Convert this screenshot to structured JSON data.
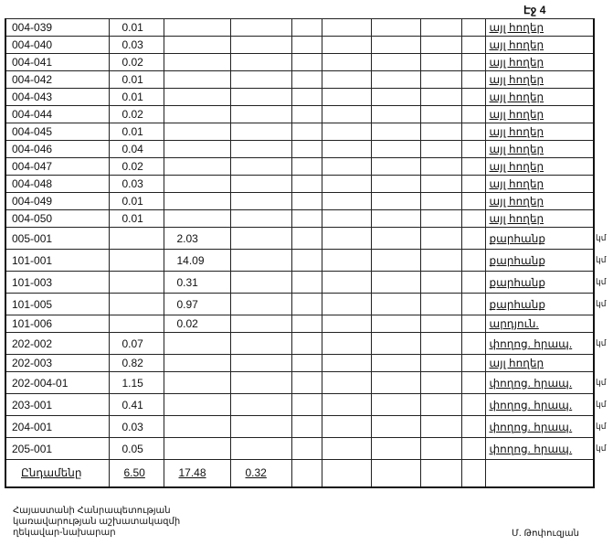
{
  "page_label": "Էջ 4",
  "rows": [
    {
      "code": "004-039",
      "a": "0.01",
      "b": "",
      "c": "",
      "land": "այլ հողեր",
      "suffix": ""
    },
    {
      "code": "004-040",
      "a": "0.03",
      "b": "",
      "c": "",
      "land": "այլ հողեր",
      "suffix": ""
    },
    {
      "code": "004-041",
      "a": "0.02",
      "b": "",
      "c": "",
      "land": "այլ հողեր",
      "suffix": ""
    },
    {
      "code": "004-042",
      "a": "0.01",
      "b": "",
      "c": "",
      "land": "այլ հողեր",
      "suffix": ""
    },
    {
      "code": "004-043",
      "a": "0.01",
      "b": "",
      "c": "",
      "land": "այլ հողեր",
      "suffix": ""
    },
    {
      "code": "004-044",
      "a": "0.02",
      "b": "",
      "c": "",
      "land": "այլ հողեր",
      "suffix": ""
    },
    {
      "code": "004-045",
      "a": "0.01",
      "b": "",
      "c": "",
      "land": "այլ հողեր",
      "suffix": ""
    },
    {
      "code": "004-046",
      "a": "0.04",
      "b": "",
      "c": "",
      "land": "այլ հողեր",
      "suffix": ""
    },
    {
      "code": "004-047",
      "a": "0.02",
      "b": "",
      "c": "",
      "land": "այլ հողեր",
      "suffix": ""
    },
    {
      "code": "004-048",
      "a": "0.03",
      "b": "",
      "c": "",
      "land": "այլ հողեր",
      "suffix": ""
    },
    {
      "code": "004-049",
      "a": "0.01",
      "b": "",
      "c": "",
      "land": "այլ հողեր",
      "suffix": ""
    },
    {
      "code": "004-050",
      "a": "0.01",
      "b": "",
      "c": "",
      "land": "այլ հողեր",
      "suffix": ""
    },
    {
      "code": "005-001",
      "a": "",
      "b": "2.03",
      "c": "",
      "land": "քարհանք",
      "suffix": "կմ"
    },
    {
      "code": "101-001",
      "a": "",
      "b": "14.09",
      "c": "",
      "land": "քարհանք",
      "suffix": "կմ"
    },
    {
      "code": "101-003",
      "a": "",
      "b": "0.31",
      "c": "",
      "land": "քարհանք",
      "suffix": "կմ"
    },
    {
      "code": "101-005",
      "a": "",
      "b": "0.97",
      "c": "",
      "land": "քարհանք",
      "suffix": "կմ"
    },
    {
      "code": "101-006",
      "a": "",
      "b": "0.02",
      "c": "",
      "land": "արդյուն.",
      "suffix": ""
    },
    {
      "code": "202-002",
      "a": "0.07",
      "b": "",
      "c": "",
      "land": "փողոց. հրապ.",
      "suffix": "կմ"
    },
    {
      "code": "202-003",
      "a": "0.82",
      "b": "",
      "c": "",
      "land": "այլ հողեր",
      "suffix": ""
    },
    {
      "code": "202-004-01",
      "a": "1.15",
      "b": "",
      "c": "",
      "land": "փողոց. հրապ.",
      "suffix": "կմ"
    },
    {
      "code": "203-001",
      "a": "0.41",
      "b": "",
      "c": "",
      "land": "փողոց. հրապ.",
      "suffix": "կմ"
    },
    {
      "code": "204-001",
      "a": "0.03",
      "b": "",
      "c": "",
      "land": "փողոց. հրապ.",
      "suffix": "կմ"
    },
    {
      "code": "205-001",
      "a": "0.05",
      "b": "",
      "c": "",
      "land": "փողոց. հրապ.",
      "suffix": "կմ"
    }
  ],
  "total": {
    "label": "Ընդամենը",
    "a": "6.50",
    "b": "17.48",
    "c": "0.32"
  },
  "footer": {
    "title_lines": [
      "Հայաստանի Հանրապետության",
      "կառավարության աշխատակազմի",
      "ղեկավար-նախարար"
    ],
    "signatory": "Մ. Թոփուզյան"
  }
}
